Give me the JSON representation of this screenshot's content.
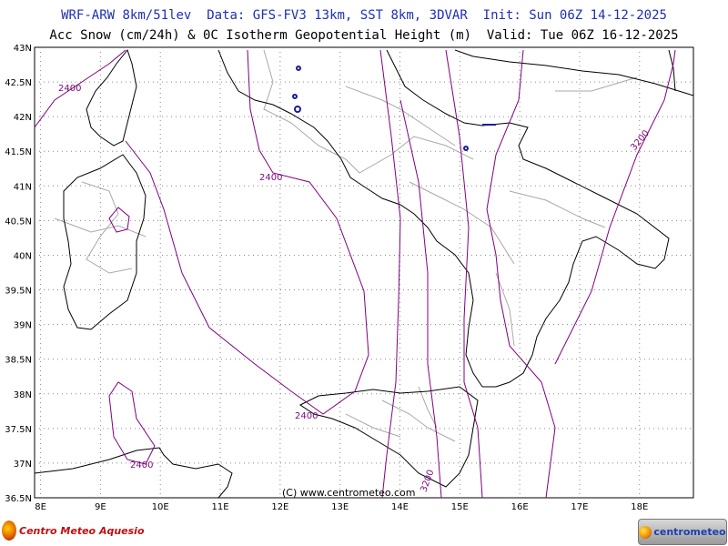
{
  "header": {
    "line1": "WRF-ARW 8km/51lev  Data: GFS-FV3 13km, SST 8km, 3DVAR  Init: Sun 06Z 14-12-2025",
    "line2": "Acc Snow (cm/24h) & 0C Isotherm Geopotential Height (m)  Valid: Tue 06Z 16-12-2025"
  },
  "axes": {
    "lat_labels": [
      "43N",
      "42.5N",
      "42N",
      "41.5N",
      "41N",
      "40.5N",
      "40N",
      "39.5N",
      "39N",
      "38.5N",
      "38N",
      "37.5N",
      "37N",
      "36.5N"
    ],
    "lon_labels": [
      "8E",
      "9E",
      "10E",
      "11E",
      "12E",
      "13E",
      "14E",
      "15E",
      "16E",
      "17E",
      "18E"
    ],
    "lat_range": [
      36.5,
      43
    ],
    "lon_range": [
      7.9,
      18.9
    ]
  },
  "contour_labels": [
    "2400",
    "2400",
    "2400",
    "2400",
    "3200",
    "3200"
  ],
  "copyright": "(C) www.centrometeo.com",
  "logos": {
    "left": "Centro Meteo Aquesio",
    "right": "centrometeo"
  },
  "colors": {
    "contour": "#800080",
    "coast": "#000000",
    "borders": "#a0a0a0",
    "snow": "#1a1aa0",
    "title": "#1f2fb5"
  }
}
